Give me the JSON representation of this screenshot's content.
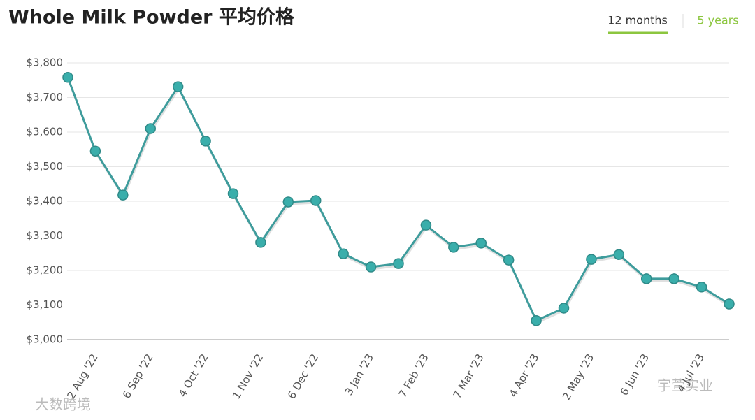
{
  "chart_data": {
    "type": "line",
    "title": "Whole Milk Powder 平均价格",
    "tabs": [
      "12 months",
      "5 years"
    ],
    "watermarks": [
      "大数跨境",
      "宇萱实业"
    ],
    "categories": [
      null,
      "2 Aug '22",
      null,
      "6 Sep '22",
      null,
      "4 Oct '22",
      null,
      "1 Nov '22",
      null,
      "6 Dec '22",
      null,
      "3 Jan '23",
      null,
      "7 Feb '23",
      null,
      "7 Mar '23",
      null,
      "4 Apr '23",
      null,
      "2 May '23",
      null,
      "6 Jun '23",
      null,
      "4 Jul '23",
      null
    ],
    "values": [
      3758,
      3545,
      3418,
      3610,
      3731,
      3574,
      3422,
      3281,
      3398,
      3402,
      3248,
      3210,
      3220,
      3331,
      3267,
      3279,
      3230,
      3055,
      3091,
      3232,
      3246,
      3176,
      3176,
      3152,
      3103
    ],
    "color": "#3aaeab",
    "ylim": [
      3000,
      3800
    ],
    "yticks": [
      {
        "value": 3000,
        "label": "$3,000"
      },
      {
        "value": 3100,
        "label": "$3,100"
      },
      {
        "value": 3200,
        "label": "$3,200"
      },
      {
        "value": 3300,
        "label": "$3,300"
      },
      {
        "value": 3400,
        "label": "$3,400"
      },
      {
        "value": 3500,
        "label": "$3,500"
      },
      {
        "value": 3600,
        "label": "$3,600"
      },
      {
        "value": 3700,
        "label": "$3,700"
      },
      {
        "value": 3800,
        "label": "$3,800"
      }
    ],
    "grid": true
  }
}
